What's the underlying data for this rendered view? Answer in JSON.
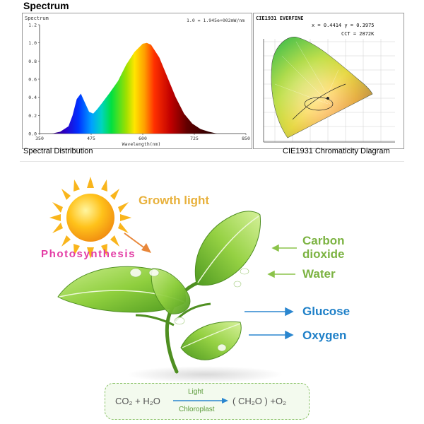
{
  "spectrum_section": {
    "title": "Spectrum",
    "caption": "Spectral Distribution",
    "panel_label": "Spectrum",
    "scale_note": "1.0 = 1.945e+002mW/nm",
    "xlabel": "Wavelength(nm)",
    "y_ticks": [
      "1.2",
      "1.0",
      "0.8",
      "0.6",
      "0.4",
      "0.2",
      "0.0"
    ],
    "x_ticks": [
      "350",
      "475",
      "600",
      "725",
      "850"
    ]
  },
  "chart_data": {
    "type": "area",
    "title": "Spectrum",
    "xlabel": "Wavelength(nm)",
    "ylabel": "",
    "xlim": [
      350,
      850
    ],
    "ylim": [
      0,
      1.2
    ],
    "grid": false,
    "x": [
      380,
      400,
      420,
      430,
      440,
      450,
      460,
      470,
      480,
      490,
      500,
      520,
      540,
      560,
      580,
      600,
      610,
      620,
      640,
      660,
      680,
      700,
      720,
      740,
      760,
      780
    ],
    "series": [
      {
        "values": [
          0.0,
          0.02,
          0.08,
          0.2,
          0.38,
          0.44,
          0.34,
          0.24,
          0.22,
          0.27,
          0.33,
          0.45,
          0.58,
          0.76,
          0.9,
          0.99,
          1.0,
          0.98,
          0.84,
          0.62,
          0.4,
          0.22,
          0.11,
          0.05,
          0.02,
          0.0
        ]
      }
    ]
  },
  "cie_section": {
    "caption": "CIE1931 Chromaticity Diagram",
    "header_left": "CIE1931  EVERFINE",
    "coords": "x = 0.4414  y = 0.3975",
    "cct": "CCT = 2872K"
  },
  "diagram": {
    "growth_light": "Growth light",
    "photosynthesis": "Photosynthesis",
    "inputs": [
      "Carbon\ndioxide",
      "Water"
    ],
    "outputs": [
      "Glucose",
      "Oxygen"
    ],
    "formula": {
      "reactants": "CO₂ + H₂O",
      "light": "Light",
      "chloroplast": "Chloroplast",
      "products": "( CH₂O ) +O₂"
    }
  },
  "colors": {
    "growth_text": "#e8b13c",
    "photosynthesis_text": "#e33aa4",
    "green_text": "#7cb342",
    "blue_text": "#1f80c8",
    "leaf": "#7fbf3a"
  }
}
